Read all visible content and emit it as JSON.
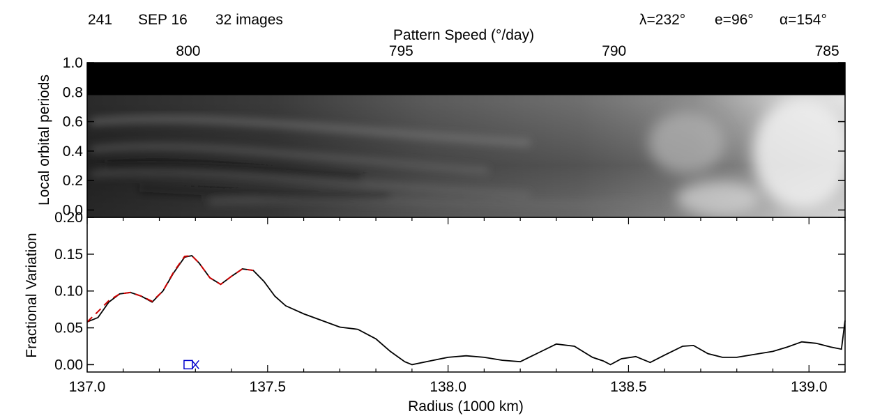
{
  "header": {
    "orbit": "241",
    "date": "SEP 16",
    "images": "32 images",
    "lambda": "λ=232°",
    "e": "e=96°",
    "alpha": "α=154°"
  },
  "colors": {
    "axis": "#000000",
    "profile": "#000000",
    "fit": "#cc0000",
    "marker": "#0000cc"
  },
  "chart_data": [
    {
      "type": "heatmap",
      "xlabel_top": "Pattern Speed (°/day)",
      "ylabel": "Local orbital periods",
      "x_top_ticks": [
        {
          "label": "800",
          "radius": 137.28
        },
        {
          "label": "795",
          "radius": 137.87
        },
        {
          "label": "790",
          "radius": 138.46
        },
        {
          "label": "785",
          "radius": 139.05
        }
      ],
      "xlim": [
        137.0,
        139.1
      ],
      "ylim": [
        -0.05,
        1.0
      ],
      "y_ticks": [
        "0.0",
        "0.2",
        "0.4",
        "0.6",
        "0.8",
        "1.0"
      ],
      "masked_above": 0.78
    },
    {
      "type": "line",
      "xlabel": "Radius (1000 km)",
      "ylabel": "Fractional Variation",
      "xlim": [
        137.0,
        139.1
      ],
      "ylim": [
        -0.01,
        0.2
      ],
      "x_ticks": [
        "137.0",
        "137.5",
        "138.0",
        "138.5",
        "139.0"
      ],
      "y_ticks": [
        "0.00",
        "0.05",
        "0.10",
        "0.15",
        "0.20"
      ],
      "series": [
        {
          "x": [
            137.0,
            137.03,
            137.06,
            137.09,
            137.12,
            137.15,
            137.18,
            137.21,
            137.24,
            137.27,
            137.29,
            137.31,
            137.34,
            137.37,
            137.4,
            137.43,
            137.46,
            137.49,
            137.52,
            137.55,
            137.6,
            137.65,
            137.7,
            137.75,
            137.8,
            137.84,
            137.88,
            137.9,
            137.95,
            138.0,
            138.05,
            138.1,
            138.15,
            138.2,
            138.25,
            138.3,
            138.35,
            138.4,
            138.43,
            138.45,
            138.48,
            138.52,
            138.56,
            138.6,
            138.65,
            138.68,
            138.72,
            138.76,
            138.8,
            138.85,
            138.9,
            138.94,
            138.98,
            139.02,
            139.06,
            139.09,
            139.1
          ],
          "y": [
            0.058,
            0.064,
            0.085,
            0.096,
            0.098,
            0.093,
            0.085,
            0.1,
            0.125,
            0.146,
            0.148,
            0.138,
            0.118,
            0.109,
            0.12,
            0.13,
            0.128,
            0.113,
            0.093,
            0.08,
            0.069,
            0.06,
            0.051,
            0.048,
            0.035,
            0.018,
            0.004,
            0.0,
            0.005,
            0.01,
            0.012,
            0.01,
            0.006,
            0.004,
            0.016,
            0.028,
            0.025,
            0.01,
            0.005,
            0.0,
            0.008,
            0.011,
            0.003,
            0.013,
            0.025,
            0.026,
            0.015,
            0.01,
            0.01,
            0.014,
            0.018,
            0.024,
            0.031,
            0.029,
            0.024,
            0.021,
            0.06
          ]
        },
        {
          "x": [
            137.0,
            137.03,
            137.06,
            137.09,
            137.12,
            137.15,
            137.18,
            137.21,
            137.24,
            137.27,
            137.29,
            137.31,
            137.34,
            137.37,
            137.4,
            137.43,
            137.46
          ],
          "y": [
            0.058,
            0.072,
            0.087,
            0.096,
            0.098,
            0.093,
            0.086,
            0.1,
            0.126,
            0.147,
            0.148,
            0.138,
            0.118,
            0.109,
            0.12,
            0.13,
            0.128
          ]
        }
      ],
      "markers": [
        {
          "shape": "square",
          "x": 137.28,
          "y": 0.0
        },
        {
          "shape": "x",
          "x": 137.3,
          "y": 0.0
        }
      ]
    }
  ]
}
